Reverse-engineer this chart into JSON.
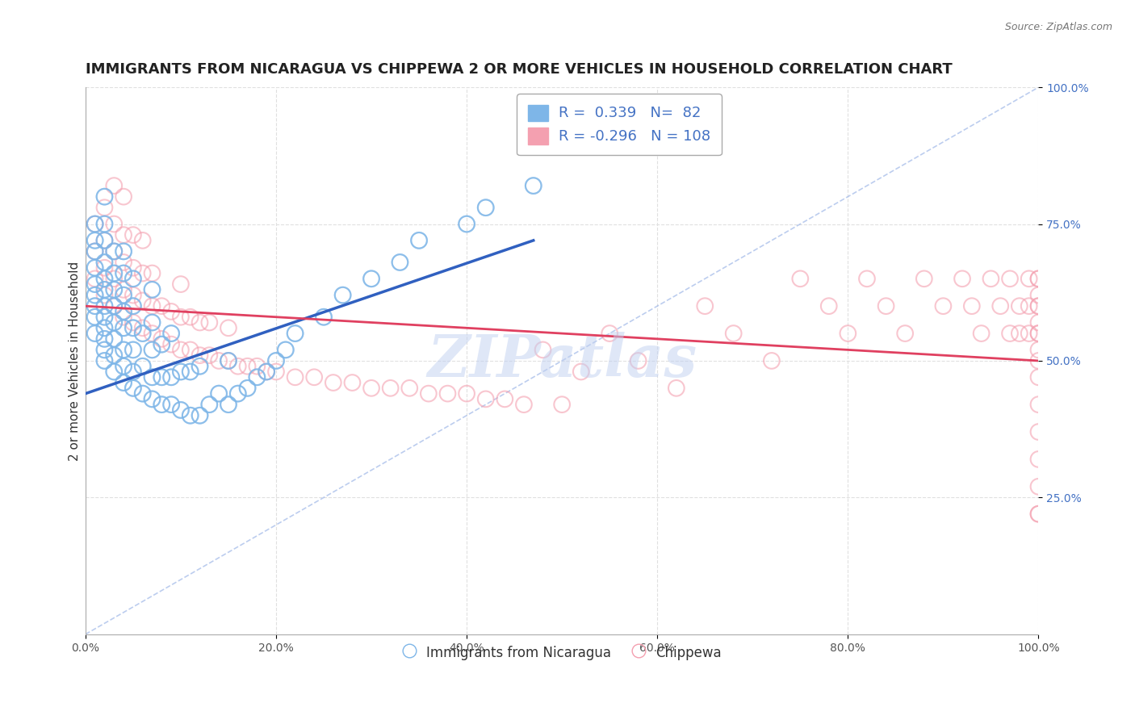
{
  "title": "IMMIGRANTS FROM NICARAGUA VS CHIPPEWA 2 OR MORE VEHICLES IN HOUSEHOLD CORRELATION CHART",
  "source": "Source: ZipAtlas.com",
  "xlabel": "",
  "ylabel": "2 or more Vehicles in Household",
  "xlim": [
    0,
    1
  ],
  "ylim": [
    0,
    1
  ],
  "xtick_labels": [
    "0.0%",
    "20.0%",
    "40.0%",
    "60.0%",
    "80.0%",
    "100.0%"
  ],
  "xtick_vals": [
    0,
    0.2,
    0.4,
    0.6,
    0.8,
    1.0
  ],
  "ytick_labels_right": [
    "25.0%",
    "50.0%",
    "75.0%",
    "100.0%"
  ],
  "ytick_vals_right": [
    0.25,
    0.5,
    0.75,
    1.0
  ],
  "blue_R": 0.339,
  "blue_N": 82,
  "pink_R": -0.296,
  "pink_N": 108,
  "blue_color": "#7EB6E8",
  "pink_color": "#F4A0B0",
  "blue_line_color": "#3060C0",
  "pink_line_color": "#E04060",
  "diagonal_color": "#A0B8E8",
  "legend_R_color": "#4472C4",
  "legend_N_color": "#4472C4",
  "blue_scatter_x": [
    0.01,
    0.01,
    0.01,
    0.01,
    0.01,
    0.01,
    0.01,
    0.01,
    0.01,
    0.02,
    0.02,
    0.02,
    0.02,
    0.02,
    0.02,
    0.02,
    0.02,
    0.02,
    0.02,
    0.02,
    0.02,
    0.03,
    0.03,
    0.03,
    0.03,
    0.03,
    0.03,
    0.03,
    0.03,
    0.04,
    0.04,
    0.04,
    0.04,
    0.04,
    0.04,
    0.04,
    0.04,
    0.05,
    0.05,
    0.05,
    0.05,
    0.05,
    0.05,
    0.06,
    0.06,
    0.06,
    0.07,
    0.07,
    0.07,
    0.07,
    0.07,
    0.08,
    0.08,
    0.08,
    0.09,
    0.09,
    0.09,
    0.1,
    0.1,
    0.11,
    0.11,
    0.12,
    0.12,
    0.13,
    0.14,
    0.15,
    0.15,
    0.16,
    0.17,
    0.18,
    0.19,
    0.2,
    0.21,
    0.22,
    0.25,
    0.27,
    0.3,
    0.33,
    0.35,
    0.4,
    0.42,
    0.47
  ],
  "blue_scatter_y": [
    0.55,
    0.58,
    0.6,
    0.62,
    0.64,
    0.67,
    0.7,
    0.72,
    0.75,
    0.5,
    0.52,
    0.54,
    0.56,
    0.58,
    0.6,
    0.63,
    0.65,
    0.68,
    0.72,
    0.75,
    0.8,
    0.48,
    0.51,
    0.54,
    0.57,
    0.6,
    0.63,
    0.66,
    0.7,
    0.46,
    0.49,
    0.52,
    0.56,
    0.59,
    0.62,
    0.66,
    0.7,
    0.45,
    0.48,
    0.52,
    0.56,
    0.6,
    0.65,
    0.44,
    0.49,
    0.55,
    0.43,
    0.47,
    0.52,
    0.57,
    0.63,
    0.42,
    0.47,
    0.53,
    0.42,
    0.47,
    0.55,
    0.41,
    0.48,
    0.4,
    0.48,
    0.4,
    0.49,
    0.42,
    0.44,
    0.42,
    0.5,
    0.44,
    0.45,
    0.47,
    0.48,
    0.5,
    0.52,
    0.55,
    0.58,
    0.62,
    0.65,
    0.68,
    0.72,
    0.75,
    0.78,
    0.82
  ],
  "pink_scatter_x": [
    0.01,
    0.01,
    0.01,
    0.02,
    0.02,
    0.02,
    0.02,
    0.03,
    0.03,
    0.03,
    0.03,
    0.03,
    0.04,
    0.04,
    0.04,
    0.04,
    0.04,
    0.05,
    0.05,
    0.05,
    0.05,
    0.06,
    0.06,
    0.06,
    0.06,
    0.07,
    0.07,
    0.07,
    0.08,
    0.08,
    0.09,
    0.09,
    0.1,
    0.1,
    0.1,
    0.11,
    0.11,
    0.12,
    0.12,
    0.13,
    0.13,
    0.14,
    0.15,
    0.15,
    0.16,
    0.17,
    0.18,
    0.19,
    0.2,
    0.22,
    0.24,
    0.26,
    0.28,
    0.3,
    0.32,
    0.34,
    0.36,
    0.38,
    0.4,
    0.42,
    0.44,
    0.46,
    0.48,
    0.5,
    0.52,
    0.55,
    0.58,
    0.62,
    0.65,
    0.68,
    0.72,
    0.75,
    0.78,
    0.8,
    0.82,
    0.84,
    0.86,
    0.88,
    0.9,
    0.92,
    0.93,
    0.94,
    0.95,
    0.96,
    0.97,
    0.97,
    0.98,
    0.98,
    0.99,
    0.99,
    0.99,
    1.0,
    1.0,
    1.0,
    1.0,
    1.0,
    1.0,
    1.0,
    1.0,
    1.0,
    1.0,
    1.0,
    1.0,
    1.0,
    1.0,
    1.0,
    1.0,
    1.0
  ],
  "pink_scatter_y": [
    0.65,
    0.7,
    0.75,
    0.62,
    0.67,
    0.72,
    0.78,
    0.6,
    0.65,
    0.7,
    0.75,
    0.82,
    0.58,
    0.63,
    0.68,
    0.73,
    0.8,
    0.57,
    0.62,
    0.67,
    0.73,
    0.56,
    0.61,
    0.66,
    0.72,
    0.55,
    0.6,
    0.66,
    0.54,
    0.6,
    0.53,
    0.59,
    0.52,
    0.58,
    0.64,
    0.52,
    0.58,
    0.51,
    0.57,
    0.51,
    0.57,
    0.5,
    0.5,
    0.56,
    0.49,
    0.49,
    0.49,
    0.48,
    0.48,
    0.47,
    0.47,
    0.46,
    0.46,
    0.45,
    0.45,
    0.45,
    0.44,
    0.44,
    0.44,
    0.43,
    0.43,
    0.42,
    0.52,
    0.42,
    0.48,
    0.55,
    0.5,
    0.45,
    0.6,
    0.55,
    0.5,
    0.65,
    0.6,
    0.55,
    0.65,
    0.6,
    0.55,
    0.65,
    0.6,
    0.65,
    0.6,
    0.55,
    0.65,
    0.6,
    0.55,
    0.65,
    0.6,
    0.55,
    0.65,
    0.6,
    0.55,
    0.65,
    0.6,
    0.55,
    0.65,
    0.6,
    0.55,
    0.5,
    0.22,
    0.62,
    0.57,
    0.52,
    0.47,
    0.42,
    0.37,
    0.32,
    0.27,
    0.22
  ],
  "blue_trend_x": [
    0.0,
    0.47
  ],
  "blue_trend_y": [
    0.44,
    0.72
  ],
  "pink_trend_x": [
    0.0,
    1.0
  ],
  "pink_trend_y": [
    0.6,
    0.5
  ],
  "watermark": "ZIPatlas",
  "watermark_color": "#C0D0F0",
  "grid_color": "#E0E0E0",
  "background_color": "#FFFFFF",
  "title_fontsize": 13,
  "axis_fontsize": 11
}
